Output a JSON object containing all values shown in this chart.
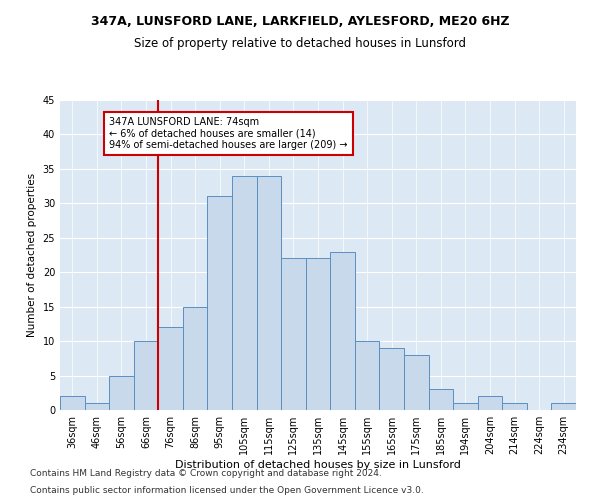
{
  "title1": "347A, LUNSFORD LANE, LARKFIELD, AYLESFORD, ME20 6HZ",
  "title2": "Size of property relative to detached houses in Lunsford",
  "xlabel": "Distribution of detached houses by size in Lunsford",
  "ylabel": "Number of detached properties",
  "categories": [
    "36sqm",
    "46sqm",
    "56sqm",
    "66sqm",
    "76sqm",
    "86sqm",
    "95sqm",
    "105sqm",
    "115sqm",
    "125sqm",
    "135sqm",
    "145sqm",
    "155sqm",
    "165sqm",
    "175sqm",
    "185sqm",
    "194sqm",
    "204sqm",
    "214sqm",
    "224sqm",
    "234sqm"
  ],
  "values": [
    2,
    1,
    5,
    10,
    12,
    15,
    31,
    34,
    34,
    22,
    22,
    23,
    10,
    9,
    8,
    3,
    1,
    2,
    1,
    0,
    1
  ],
  "bar_color": "#c9d9ec",
  "bar_edge_color": "#5a8fc0",
  "vline_x_index": 4,
  "vline_color": "#cc0000",
  "annotation_text": "347A LUNSFORD LANE: 74sqm\n← 6% of detached houses are smaller (14)\n94% of semi-detached houses are larger (209) →",
  "annotation_box_color": "#ffffff",
  "annotation_box_edge_color": "#cc0000",
  "ylim": [
    0,
    45
  ],
  "yticks": [
    0,
    5,
    10,
    15,
    20,
    25,
    30,
    35,
    40,
    45
  ],
  "footer1": "Contains HM Land Registry data © Crown copyright and database right 2024.",
  "footer2": "Contains public sector information licensed under the Open Government Licence v3.0.",
  "bg_color": "#dde8f5",
  "grid_color": "#ffffff",
  "title1_fontsize": 9,
  "title2_fontsize": 8.5,
  "xlabel_fontsize": 8,
  "ylabel_fontsize": 7.5,
  "tick_fontsize": 7,
  "annotation_fontsize": 7,
  "footer_fontsize": 6.5
}
